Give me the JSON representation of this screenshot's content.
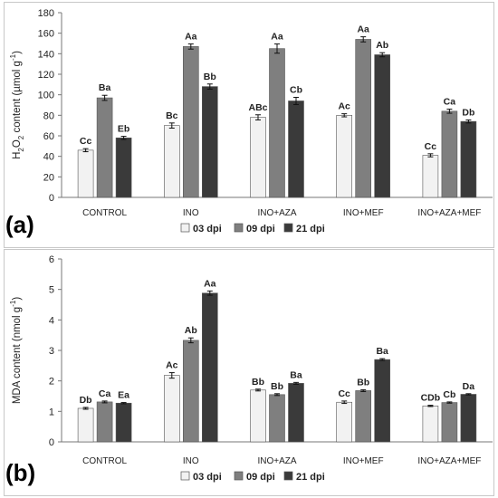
{
  "chart_data": [
    {
      "type": "bar",
      "panel": "(a)",
      "ylabel_parts": [
        "H",
        "2",
        "O",
        "2",
        " content (µmol g",
        "-1",
        ")"
      ],
      "ylim": [
        0,
        180
      ],
      "yticks": [
        0,
        20,
        40,
        60,
        80,
        100,
        120,
        140,
        160,
        180
      ],
      "categories": [
        "CONTROL",
        "INO",
        "INO+AZA",
        "INO+MEF",
        "INO+AZA+MEF"
      ],
      "series": [
        {
          "name": "03 dpi",
          "color": "#f2f2f2",
          "values": [
            46,
            70,
            78,
            80,
            41
          ],
          "errors": [
            1.5,
            2.5,
            2.5,
            1.5,
            1.5
          ],
          "labels": [
            "Cc",
            "Bc",
            "ABc",
            "Ac",
            "Cc"
          ]
        },
        {
          "name": "09 dpi",
          "color": "#7f7f7f",
          "values": [
            97,
            147,
            145,
            154,
            84
          ],
          "errors": [
            2.5,
            2.5,
            4.5,
            2.5,
            2.0
          ],
          "labels": [
            "Ba",
            "Aa",
            "Aa",
            "Aa",
            "Ca"
          ]
        },
        {
          "name": "21 dpi",
          "color": "#3a3a3a",
          "values": [
            58,
            108,
            94,
            139,
            74
          ],
          "errors": [
            1.5,
            2.5,
            3.5,
            2.0,
            1.5
          ],
          "labels": [
            "Eb",
            "Bb",
            "Cb",
            "Ab",
            "Db"
          ]
        }
      ]
    },
    {
      "type": "bar",
      "panel": "(b)",
      "ylabel_parts": [
        "MDA content (nmol g",
        "-1",
        ")"
      ],
      "ylim": [
        0,
        6
      ],
      "yticks": [
        0,
        1,
        2,
        3,
        4,
        5,
        6
      ],
      "categories": [
        "CONTROL",
        "INO",
        "INO+AZA",
        "INO+MEF",
        "INO+AZA+MEF"
      ],
      "series": [
        {
          "name": "03 dpi",
          "color": "#f2f2f2",
          "values": [
            1.1,
            2.18,
            1.7,
            1.3,
            1.18
          ],
          "errors": [
            0.03,
            0.09,
            0.03,
            0.04,
            0.02
          ],
          "labels": [
            "Db",
            "Ac",
            "Bb",
            "Cc",
            "CDb"
          ]
        },
        {
          "name": "09 dpi",
          "color": "#7f7f7f",
          "values": [
            1.31,
            3.33,
            1.55,
            1.68,
            1.29
          ],
          "errors": [
            0.03,
            0.08,
            0.03,
            0.03,
            0.02
          ],
          "labels": [
            "Ca",
            "Ab",
            "Bb",
            "Bb",
            "Cb"
          ]
        },
        {
          "name": "21 dpi",
          "color": "#3a3a3a",
          "values": [
            1.27,
            4.88,
            1.92,
            2.7,
            1.56
          ],
          "errors": [
            0.02,
            0.07,
            0.03,
            0.03,
            0.02
          ],
          "labels": [
            "Ea",
            "Aa",
            "Ba",
            "Ba",
            "Da"
          ]
        }
      ]
    }
  ]
}
